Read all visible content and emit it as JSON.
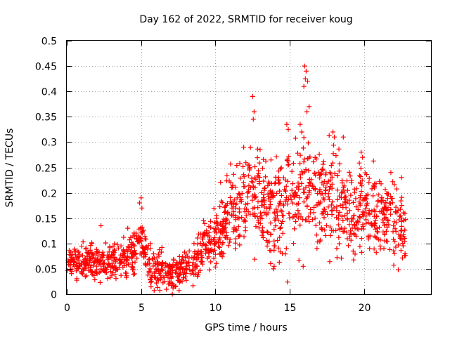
{
  "chart_data": {
    "type": "scatter",
    "title": "Day 162 of 2022, SRMTID for receiver koug",
    "xlabel": "GPS time / hours",
    "ylabel": "SRMTID / TECUs",
    "xlim": [
      0,
      24.5
    ],
    "ylim": [
      0,
      0.5
    ],
    "x_ticks": [
      0,
      5,
      10,
      15,
      20
    ],
    "x_tick_labels": [
      "0",
      "5",
      "10",
      "15",
      "20"
    ],
    "y_ticks": [
      0,
      0.05,
      0.1,
      0.15,
      0.2,
      0.25,
      0.3,
      0.35,
      0.4,
      0.45,
      0.5
    ],
    "y_tick_labels": [
      "0",
      "0.05",
      "0.1",
      "0.15",
      "0.2",
      "0.25",
      "0.3",
      "0.35",
      "0.4",
      "0.45",
      "0.5"
    ],
    "grid": true,
    "marker": "plus",
    "color": "#ff0000",
    "series": [
      {
        "name": "SRMTID",
        "trend": {
          "x": [
            0,
            0.5,
            1,
            1.5,
            2,
            2.5,
            3,
            3.5,
            4,
            4.5,
            4.8,
            5,
            5.3,
            5.6,
            6,
            6.5,
            7,
            7.5,
            8,
            8.5,
            9,
            9.3,
            9.6,
            10,
            10.5,
            11,
            11.5,
            12,
            12.5,
            13,
            13.5,
            14,
            14.5,
            15,
            15.5,
            16,
            16.5,
            17,
            17.5,
            18,
            18.5,
            19,
            19.5,
            20,
            20.5,
            21,
            21.5,
            22,
            22.5,
            22.8
          ],
          "y": [
            0.065,
            0.065,
            0.06,
            0.07,
            0.065,
            0.06,
            0.07,
            0.065,
            0.07,
            0.08,
            0.1,
            0.11,
            0.08,
            0.055,
            0.05,
            0.045,
            0.035,
            0.04,
            0.05,
            0.06,
            0.08,
            0.1,
            0.09,
            0.1,
            0.13,
            0.16,
            0.17,
            0.18,
            0.2,
            0.18,
            0.17,
            0.16,
            0.15,
            0.2,
            0.19,
            0.24,
            0.2,
            0.2,
            0.18,
            0.2,
            0.16,
            0.17,
            0.15,
            0.18,
            0.16,
            0.16,
            0.15,
            0.14,
            0.14,
            0.12
          ]
        },
        "spread": {
          "x": [
            0,
            5,
            9,
            10,
            12,
            16,
            20,
            22.8
          ],
          "y": [
            0.02,
            0.025,
            0.025,
            0.04,
            0.06,
            0.07,
            0.055,
            0.05
          ]
        },
        "n_points": 1500,
        "x_range": [
          0,
          22.8
        ],
        "highlights": [
          [
            12.5,
            0.39
          ],
          [
            12.6,
            0.36
          ],
          [
            12.55,
            0.345
          ],
          [
            16.0,
            0.45
          ],
          [
            16.1,
            0.44
          ],
          [
            16.05,
            0.425
          ],
          [
            16.2,
            0.42
          ],
          [
            15.95,
            0.41
          ],
          [
            16.3,
            0.37
          ],
          [
            16.15,
            0.36
          ],
          [
            14.8,
            0.335
          ],
          [
            14.9,
            0.325
          ],
          [
            15.7,
            0.335
          ],
          [
            15.8,
            0.32
          ],
          [
            17.9,
            0.32
          ],
          [
            18.0,
            0.31
          ],
          [
            11.9,
            0.29
          ],
          [
            13.0,
            0.285
          ],
          [
            19.8,
            0.28
          ],
          [
            19.9,
            0.27
          ],
          [
            18.6,
            0.31
          ],
          [
            21.8,
            0.24
          ],
          [
            22.5,
            0.23
          ],
          [
            7.1,
            0.0
          ],
          [
            13.9,
            0.05
          ],
          [
            13.95,
            0.055
          ],
          [
            15.9,
            0.055
          ],
          [
            22.3,
            0.048
          ],
          [
            5.0,
            0.19
          ],
          [
            4.9,
            0.18
          ],
          [
            5.05,
            0.17
          ],
          [
            2.3,
            0.135
          ],
          [
            4.1,
            0.13
          ],
          [
            9.2,
            0.145
          ],
          [
            11.1,
            0.21
          ]
        ]
      }
    ]
  }
}
